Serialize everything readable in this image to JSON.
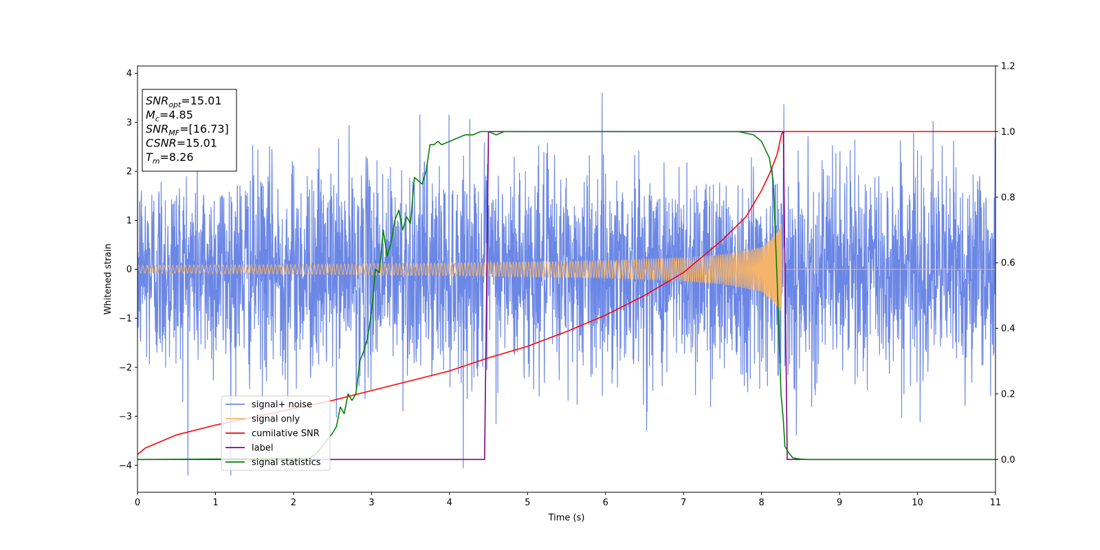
{
  "chart_data": {
    "type": "line",
    "xlabel": "Time (s)",
    "ylabel": "Whitened strain",
    "xlim": [
      0,
      11
    ],
    "ylim": [
      -4.55,
      4.15
    ],
    "y2lim": [
      -0.1,
      1.2
    ],
    "xticks": [
      "0",
      "1",
      "2",
      "3",
      "4",
      "5",
      "6",
      "7",
      "8",
      "9",
      "10",
      "11"
    ],
    "yticks": [
      "−4",
      "−3",
      "−2",
      "−1",
      "0",
      "1",
      "2",
      "3",
      "4"
    ],
    "y2ticks": [
      "0.0",
      "0.2",
      "0.4",
      "0.6",
      "0.8",
      "1.0",
      "1.2"
    ],
    "grid": false,
    "legend_position": "lower-left",
    "annotation": [
      {
        "sym": "SNR",
        "sub": "opt",
        "value": "=15.01"
      },
      {
        "sym": "M",
        "sub": "c",
        "value": "=4.85"
      },
      {
        "sym": "SNR",
        "sub": "MF",
        "value": "=[16.73]"
      },
      {
        "sym": "CSNR",
        "sub": "",
        "value": "=15.01"
      },
      {
        "sym": "T",
        "sub": "m",
        "value": "=8.26"
      }
    ],
    "series": [
      {
        "name": "signal+ noise",
        "axis": "left",
        "color": "#6b87e6",
        "kind": "noise",
        "noise_std": 1.05,
        "envelope": {
          "x": [
            0,
            11
          ],
          "y": [
            -4.2,
            3.8
          ]
        }
      },
      {
        "name": "signal only",
        "axis": "left",
        "color": "#f5b46a",
        "kind": "chirp",
        "t_merge": 8.26,
        "envelope": {
          "x": [
            0,
            2,
            4,
            6,
            7,
            7.5,
            8,
            8.2,
            8.26
          ],
          "y": [
            0.08,
            0.1,
            0.13,
            0.18,
            0.24,
            0.3,
            0.45,
            0.75,
            0.95
          ]
        }
      },
      {
        "name": "cumilative SNR",
        "axis": "right",
        "color": "#ff0000",
        "kind": "line",
        "x": [
          0,
          0.1,
          0.3,
          0.5,
          1,
          1.5,
          2,
          2.5,
          3,
          3.5,
          4,
          4.5,
          5,
          5.5,
          6,
          6.5,
          7,
          7.5,
          7.8,
          8,
          8.1,
          8.2,
          8.26,
          8.3,
          11
        ],
        "y": [
          0.015,
          0.035,
          0.055,
          0.075,
          0.105,
          0.13,
          0.155,
          0.18,
          0.21,
          0.24,
          0.27,
          0.31,
          0.345,
          0.39,
          0.44,
          0.5,
          0.57,
          0.67,
          0.74,
          0.82,
          0.87,
          0.93,
          0.995,
          1.0,
          1.0
        ]
      },
      {
        "name": "label",
        "axis": "right",
        "color": "#800080",
        "kind": "line",
        "x": [
          0,
          4.45,
          4.5,
          8.28,
          8.33,
          11
        ],
        "y": [
          0,
          0,
          1,
          1,
          0,
          0
        ]
      },
      {
        "name": "signal statistics",
        "axis": "right",
        "color": "#008000",
        "kind": "line",
        "x": [
          0,
          2.2,
          2.3,
          2.4,
          2.5,
          2.55,
          2.6,
          2.65,
          2.7,
          2.75,
          2.8,
          2.85,
          2.9,
          2.95,
          3.0,
          3.05,
          3.1,
          3.15,
          3.2,
          3.25,
          3.3,
          3.35,
          3.4,
          3.45,
          3.5,
          3.55,
          3.6,
          3.65,
          3.7,
          3.75,
          3.8,
          3.85,
          3.9,
          4.0,
          4.1,
          4.2,
          4.3,
          4.4,
          4.5,
          4.6,
          4.7,
          4.8,
          5,
          6,
          7,
          7.7,
          7.9,
          8.0,
          8.1,
          8.15,
          8.2,
          8.25,
          8.28,
          8.3,
          8.35,
          8.4,
          8.45,
          8.5,
          8.6,
          8.8,
          11
        ],
        "y": [
          0.0,
          0.003,
          0.02,
          0.05,
          0.08,
          0.1,
          0.16,
          0.14,
          0.2,
          0.18,
          0.2,
          0.3,
          0.33,
          0.37,
          0.45,
          0.58,
          0.57,
          0.7,
          0.62,
          0.66,
          0.73,
          0.76,
          0.7,
          0.74,
          0.72,
          0.86,
          0.85,
          0.84,
          0.88,
          0.96,
          0.96,
          0.97,
          0.96,
          0.97,
          0.98,
          0.99,
          0.99,
          1.0,
          1.0,
          0.99,
          1.0,
          1.0,
          1.0,
          1.0,
          1.0,
          1.0,
          0.99,
          0.97,
          0.92,
          0.85,
          0.55,
          0.2,
          0.12,
          0.04,
          0.02,
          0.005,
          0.003,
          0.001,
          0.0,
          0.0,
          0.0
        ]
      }
    ]
  }
}
